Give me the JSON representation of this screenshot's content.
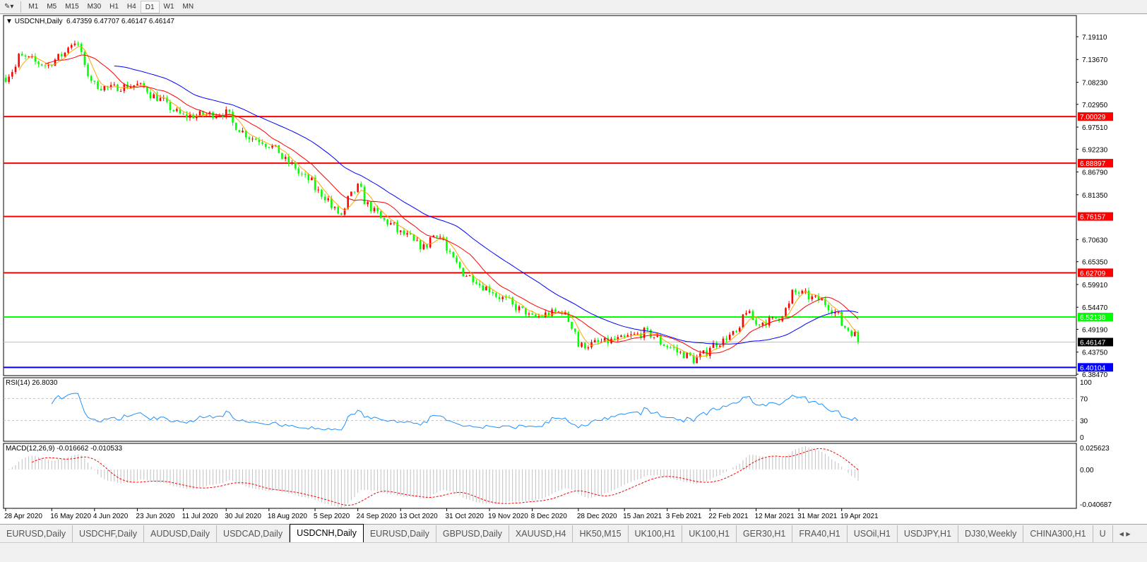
{
  "toolbar": {
    "timeframes": [
      "M1",
      "M5",
      "M15",
      "M30",
      "H1",
      "H4",
      "D1",
      "W1",
      "MN"
    ],
    "active": "D1"
  },
  "chart_header": {
    "symbol": "USDCNH,Daily",
    "ohlc": "6.47359 6.47707 6.46147 6.46147"
  },
  "rsi_header": "RSI(14) 26.8030",
  "macd_header": "MACD(12,26,9) -0.016662 -0.010533",
  "colors": {
    "bull": "#ff0000",
    "bear": "#00ff00",
    "ma_fast": "#ffa500",
    "ma_mid": "#ff0000",
    "ma_slow": "#0000ff",
    "rsi": "#1e90ff",
    "macd_hist": "#c0c0c0",
    "macd_signal": "#ff0000"
  },
  "chart_data": {
    "type": "candlestick",
    "price_ticks": [
      "7.19110",
      "7.13670",
      "7.08230",
      "7.02950",
      "6.97510",
      "6.92230",
      "6.86790",
      "6.81350",
      "6.70630",
      "6.65350",
      "6.59910",
      "6.54470",
      "6.49190",
      "6.43750",
      "6.38470"
    ],
    "ylim": [
      6.3847,
      7.1911
    ],
    "levels": [
      {
        "price": "7.00029",
        "color": "#ff0000"
      },
      {
        "price": "6.88897",
        "color": "#ff0000"
      },
      {
        "price": "6.76157",
        "color": "#ff0000"
      },
      {
        "price": "6.62709",
        "color": "#ff0000"
      },
      {
        "price": "6.52138",
        "color": "#00ff00"
      },
      {
        "price": "6.40104",
        "color": "#0000ff"
      }
    ],
    "bid": "6.46147",
    "date_labels": [
      "28 Apr 2020",
      "16 May 2020",
      "4 Jun 2020",
      "23 Jun 2020",
      "11 Jul 2020",
      "30 Jul 2020",
      "18 Aug 2020",
      "5 Sep 2020",
      "24 Sep 2020",
      "13 Oct 2020",
      "31 Oct 2020",
      "19 Nov 2020",
      "8 Dec 2020",
      "28 Dec 2020",
      "15 Jan 2021",
      "3 Feb 2021",
      "22 Feb 2021",
      "12 Mar 2021",
      "31 Mar 2021",
      "19 Apr 2021"
    ],
    "closes": [
      [
        "2020-04-28",
        7.093
      ],
      [
        "2020-05-04",
        7.144
      ],
      [
        "2020-05-16",
        7.12
      ],
      [
        "2020-05-27",
        7.18
      ],
      [
        "2020-06-04",
        7.076
      ],
      [
        "2020-06-11",
        7.068
      ],
      [
        "2020-06-23",
        7.076
      ],
      [
        "2020-07-06",
        7.026
      ],
      [
        "2020-07-11",
        7.0
      ],
      [
        "2020-07-30",
        7.009
      ],
      [
        "2020-08-07",
        6.958
      ],
      [
        "2020-08-18",
        6.933
      ],
      [
        "2020-08-29",
        6.874
      ],
      [
        "2020-09-05",
        6.84
      ],
      [
        "2020-09-17",
        6.764
      ],
      [
        "2020-09-24",
        6.832
      ],
      [
        "2020-10-01",
        6.773
      ],
      [
        "2020-10-13",
        6.722
      ],
      [
        "2020-10-22",
        6.688
      ],
      [
        "2020-10-28",
        6.722
      ],
      [
        "2020-10-31",
        6.697
      ],
      [
        "2020-11-06",
        6.638
      ],
      [
        "2020-11-19",
        6.587
      ],
      [
        "2020-12-03",
        6.537
      ],
      [
        "2020-12-08",
        6.52
      ],
      [
        "2020-12-21",
        6.537
      ],
      [
        "2020-12-28",
        6.452
      ],
      [
        "2021-01-15",
        6.469
      ],
      [
        "2021-01-25",
        6.486
      ],
      [
        "2021-02-03",
        6.452
      ],
      [
        "2021-02-15",
        6.418
      ],
      [
        "2021-02-22",
        6.452
      ],
      [
        "2021-03-05",
        6.486
      ],
      [
        "2021-03-09",
        6.537
      ],
      [
        "2021-03-12",
        6.503
      ],
      [
        "2021-03-23",
        6.52
      ],
      [
        "2021-03-29",
        6.579
      ],
      [
        "2021-03-31",
        6.579
      ],
      [
        "2021-04-12",
        6.554
      ],
      [
        "2021-04-19",
        6.503
      ],
      [
        "2021-04-26",
        6.46147
      ]
    ],
    "rsi": {
      "ticks": [
        "100",
        "70",
        "30",
        "0"
      ],
      "levels": [
        70,
        30
      ],
      "last": 26.803
    },
    "macd": {
      "ticks": [
        "0.025623",
        "0.00",
        "-0.040687"
      ],
      "ylim": [
        -0.040687,
        0.025623
      ]
    }
  },
  "tabs": [
    "EURUSD,Daily",
    "USDCHF,Daily",
    "AUDUSD,Daily",
    "USDCAD,Daily",
    "USDCNH,Daily",
    "EURUSD,Daily",
    "GBPUSD,Daily",
    "XAUUSD,H4",
    "HK50,M15",
    "UK100,H1",
    "UK100,H1",
    "GER30,H1",
    "FRA40,H1",
    "USOil,H1",
    "USDJPY,H1",
    "DJ30,Weekly",
    "CHINA300,H1",
    "U"
  ],
  "active_tab": "USDCNH,Daily"
}
